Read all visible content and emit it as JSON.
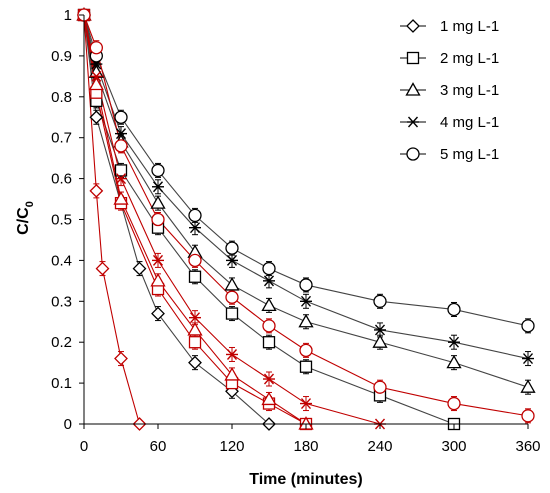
{
  "chart_data": {
    "type": "scatter",
    "xlabel": "Time (minutes)",
    "ylabel": "C/C0",
    "ylabel_main": "C/C",
    "ylabel_sub": "0",
    "xlim": [
      0,
      360
    ],
    "ylim": [
      0,
      1
    ],
    "xticks": [
      0,
      60,
      120,
      180,
      240,
      300,
      360
    ],
    "yticks": [
      0,
      0.1,
      0.2,
      0.3,
      0.4,
      0.5,
      0.6,
      0.7,
      0.8,
      0.9,
      1
    ],
    "ytick_labels": [
      "0",
      "0.1",
      "0.2",
      "0.3",
      "0.4",
      "0.5",
      "0.6",
      "0.7",
      "0.8",
      "0.9",
      "1"
    ],
    "grid": false,
    "legend_position": "top-right",
    "colors": {
      "black_series": "#000000",
      "red_series": "#c00000",
      "line": "#444444"
    },
    "series": [
      {
        "name": "1 mg L-1",
        "marker": "diamond",
        "color": "black",
        "x": [
          0,
          10,
          45,
          60,
          90,
          120,
          150
        ],
        "y": [
          1,
          0.75,
          0.38,
          0.27,
          0.15,
          0.08,
          0
        ]
      },
      {
        "name": "2 mg L-1",
        "marker": "square",
        "color": "black",
        "x": [
          0,
          10,
          30,
          60,
          90,
          120,
          150,
          180,
          240,
          300
        ],
        "y": [
          1,
          0.79,
          0.62,
          0.48,
          0.36,
          0.27,
          0.2,
          0.14,
          0.07,
          0
        ]
      },
      {
        "name": "3 mg L-1",
        "marker": "triangle",
        "color": "black",
        "x": [
          0,
          10,
          30,
          60,
          90,
          120,
          150,
          180,
          240,
          300,
          360
        ],
        "y": [
          1,
          0.86,
          0.69,
          0.54,
          0.42,
          0.34,
          0.29,
          0.25,
          0.2,
          0.15,
          0.09
        ]
      },
      {
        "name": "4 mg L-1",
        "marker": "asterisk",
        "color": "black",
        "x": [
          0,
          10,
          30,
          60,
          90,
          120,
          150,
          180,
          240,
          300,
          360
        ],
        "y": [
          1,
          0.88,
          0.71,
          0.58,
          0.48,
          0.4,
          0.35,
          0.3,
          0.23,
          0.2,
          0.16
        ]
      },
      {
        "name": "5 mg L-1",
        "marker": "circle",
        "color": "black",
        "x": [
          0,
          10,
          30,
          60,
          90,
          120,
          150,
          180,
          240,
          300,
          360
        ],
        "y": [
          1,
          0.9,
          0.75,
          0.62,
          0.51,
          0.43,
          0.38,
          0.34,
          0.3,
          0.28,
          0.24
        ]
      },
      {
        "marker": "diamond",
        "color": "red",
        "x": [
          0,
          10,
          15,
          30,
          45
        ],
        "y": [
          1,
          0.57,
          0.38,
          0.16,
          0
        ]
      },
      {
        "marker": "square",
        "color": "red",
        "x": [
          0,
          10,
          30,
          60,
          90,
          120,
          150,
          180
        ],
        "y": [
          1,
          0.81,
          0.54,
          0.33,
          0.2,
          0.1,
          0.05,
          0
        ]
      },
      {
        "marker": "triangle",
        "color": "red",
        "x": [
          0,
          10,
          30,
          60,
          90,
          120,
          150,
          180
        ],
        "y": [
          1,
          0.83,
          0.55,
          0.35,
          0.23,
          0.12,
          0.06,
          0
        ]
      },
      {
        "marker": "asterisk",
        "color": "red",
        "x": [
          0,
          10,
          30,
          60,
          90,
          120,
          150,
          180,
          240
        ],
        "y": [
          1,
          0.85,
          0.6,
          0.4,
          0.26,
          0.17,
          0.11,
          0.05,
          0
        ]
      },
      {
        "marker": "circle",
        "color": "red",
        "x": [
          0,
          10,
          30,
          60,
          90,
          120,
          150,
          180,
          240,
          300,
          360
        ],
        "y": [
          1,
          0.92,
          0.68,
          0.5,
          0.4,
          0.31,
          0.24,
          0.18,
          0.09,
          0.05,
          0.02
        ]
      }
    ]
  }
}
